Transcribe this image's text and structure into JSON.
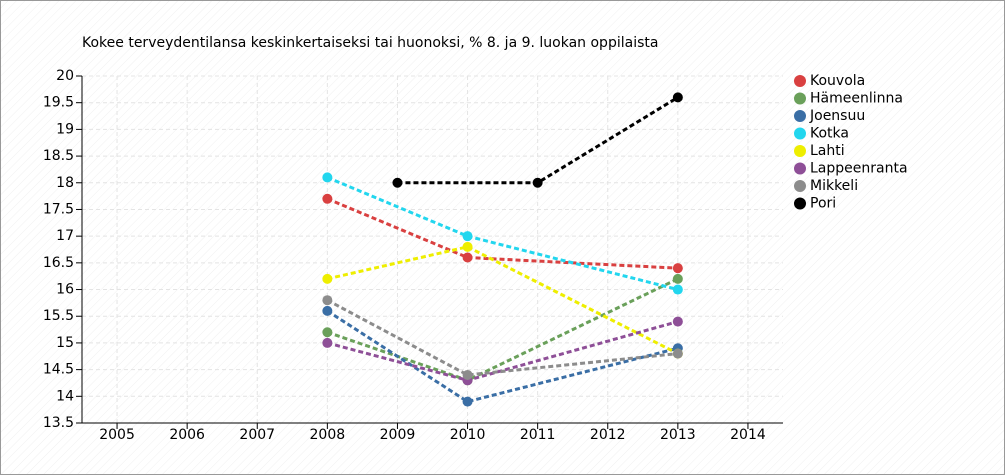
{
  "chart_data": {
    "type": "line",
    "title": "Kokee terveydentilansa keskinkertaiseksi tai huonoksi, % 8. ja 9. luokan oppilaista",
    "xlim": [
      2004.5,
      2014.5
    ],
    "xticks": [
      2005,
      2006,
      2007,
      2008,
      2009,
      2010,
      2011,
      2012,
      2013,
      2014
    ],
    "ylim": [
      13.5,
      20
    ],
    "yticks": [
      13.5,
      14,
      14.5,
      15,
      15.5,
      16,
      16.5,
      17,
      17.5,
      18,
      18.5,
      19,
      19.5,
      20
    ],
    "grid": true,
    "legend": "right",
    "series": [
      {
        "name": "Kouvola",
        "color": "#d94040",
        "x": [
          2008,
          2010,
          2013
        ],
        "values": [
          17.7,
          16.6,
          16.4
        ]
      },
      {
        "name": "Hämeenlinna",
        "color": "#6aa05a",
        "x": [
          2008,
          2010,
          2013
        ],
        "values": [
          15.2,
          14.3,
          16.2
        ]
      },
      {
        "name": "Joensuu",
        "color": "#3a6ea5",
        "x": [
          2008,
          2010,
          2013
        ],
        "values": [
          15.6,
          13.9,
          14.9
        ]
      },
      {
        "name": "Kotka",
        "color": "#22d6ee",
        "x": [
          2008,
          2010,
          2013
        ],
        "values": [
          18.1,
          17.0,
          16.0
        ]
      },
      {
        "name": "Lahti",
        "color": "#eeee00",
        "x": [
          2008,
          2010,
          2013
        ],
        "values": [
          16.2,
          16.8,
          14.8
        ]
      },
      {
        "name": "Lappeenranta",
        "color": "#8e4f97",
        "x": [
          2008,
          2010,
          2013
        ],
        "values": [
          15.0,
          14.3,
          15.4
        ]
      },
      {
        "name": "Mikkeli",
        "color": "#8c8c8c",
        "x": [
          2008,
          2010,
          2013
        ],
        "values": [
          15.8,
          14.4,
          14.8
        ]
      },
      {
        "name": "Pori",
        "color": "#000000",
        "x": [
          2009,
          2011,
          2013
        ],
        "values": [
          18.0,
          18.0,
          19.6
        ]
      }
    ]
  }
}
